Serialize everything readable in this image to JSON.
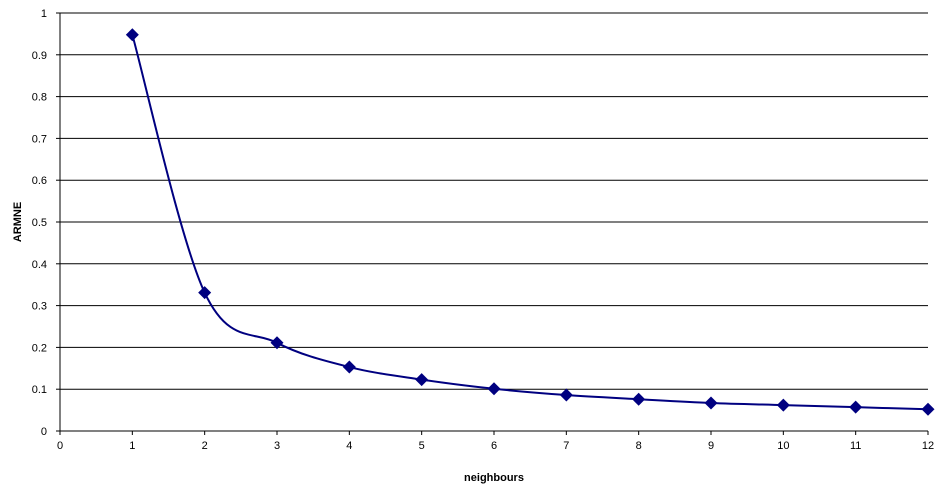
{
  "chart_data": {
    "type": "line",
    "title": "",
    "xlabel": "neighbours",
    "ylabel": "ARMNE",
    "xlim": [
      0,
      12
    ],
    "ylim": [
      0,
      1
    ],
    "x_ticks": [
      0,
      1,
      2,
      3,
      4,
      5,
      6,
      7,
      8,
      9,
      10,
      11,
      12
    ],
    "y_ticks": [
      0,
      0.1,
      0.2,
      0.3,
      0.4,
      0.5,
      0.6,
      0.7,
      0.8,
      0.9,
      1
    ],
    "y_tick_labels": [
      "0",
      "0.1",
      "0.2",
      "0.3",
      "0.4",
      "0.5",
      "0.6",
      "0.7",
      "0.8",
      "0.9",
      "1"
    ],
    "grid": "horizontal",
    "legend": "none",
    "series": [
      {
        "marker": "diamond",
        "color": "#000080",
        "smooth": true,
        "x": [
          1,
          2,
          3,
          4,
          5,
          6,
          7,
          8,
          9,
          10,
          11,
          12
        ],
        "y": [
          0.948,
          0.331,
          0.211,
          0.153,
          0.123,
          0.101,
          0.086,
          0.076,
          0.067,
          0.062,
          0.057,
          0.052
        ]
      }
    ]
  }
}
